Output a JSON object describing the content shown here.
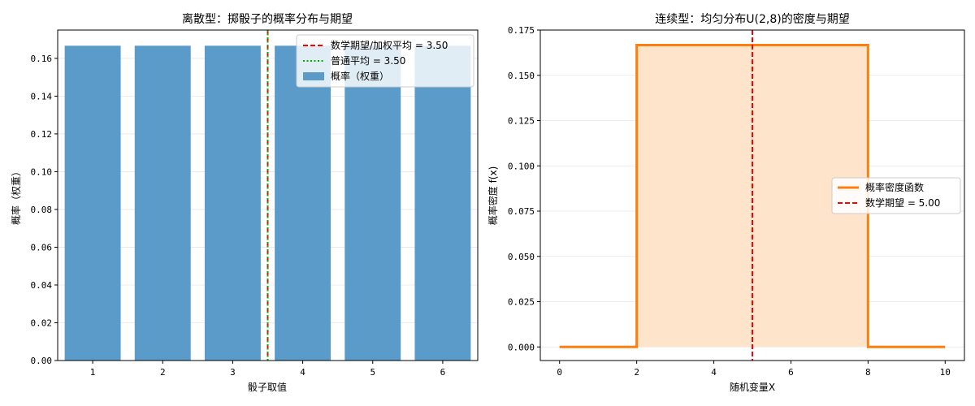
{
  "chart_data": [
    {
      "type": "bar",
      "title": "离散型：掷骰子的概率分布与期望",
      "xlabel": "骰子取值",
      "ylabel": "概率（权重）",
      "categories": [
        "1",
        "2",
        "3",
        "4",
        "5",
        "6"
      ],
      "values": [
        0.1667,
        0.1667,
        0.1667,
        0.1667,
        0.1667,
        0.1667
      ],
      "xlim": [
        0.5,
        6.5
      ],
      "ylim": [
        0,
        0.175
      ],
      "yticks": [
        0.0,
        0.02,
        0.04,
        0.06,
        0.08,
        0.1,
        0.12,
        0.14,
        0.16
      ],
      "ytick_labels": [
        "0.00",
        "0.02",
        "0.04",
        "0.06",
        "0.08",
        "0.10",
        "0.12",
        "0.14",
        "0.16"
      ],
      "grid": "y",
      "legend_position": "top-right",
      "vlines": [
        {
          "x": 3.5,
          "style": "dashed",
          "color": "#ff0000"
        },
        {
          "x": 3.5,
          "style": "dotted",
          "color": "#00aa00"
        }
      ],
      "legend": [
        {
          "label": "数学期望/加权平均 = 3.50",
          "kind": "dashed",
          "color": "#ff0000"
        },
        {
          "label": "普通平均 = 3.50",
          "kind": "dotted",
          "color": "#00aa00"
        },
        {
          "label": "概率（权重）",
          "kind": "bar",
          "color": "#5b9bc9"
        }
      ],
      "colors": {
        "bar": "#5b9bc9"
      }
    },
    {
      "type": "line",
      "title": "连续型：均匀分布U(2,8)的密度与期望",
      "xlabel": "随机变量X",
      "ylabel": "概率密度 f(x)",
      "x": [
        0,
        2,
        2,
        8,
        8,
        10
      ],
      "y": [
        0,
        0,
        0.1667,
        0.1667,
        0,
        0
      ],
      "fill_between": [
        2,
        8
      ],
      "xlim": [
        -0.5,
        10.5
      ],
      "ylim": [
        -0.0075,
        0.175
      ],
      "xticks": [
        0,
        2,
        4,
        6,
        8,
        10
      ],
      "xtick_labels": [
        "0",
        "2",
        "4",
        "6",
        "8",
        "10"
      ],
      "yticks": [
        0.0,
        0.025,
        0.05,
        0.075,
        0.1,
        0.125,
        0.15,
        0.175
      ],
      "ytick_labels": [
        "0.000",
        "0.025",
        "0.050",
        "0.075",
        "0.100",
        "0.125",
        "0.150",
        "0.175"
      ],
      "grid": "y",
      "legend_position": "center-right",
      "vlines": [
        {
          "x": 5,
          "style": "dashed",
          "color": "#ff0000"
        }
      ],
      "legend": [
        {
          "label": "概率密度函数",
          "kind": "solid",
          "color": "#ff7f0e"
        },
        {
          "label": "数学期望 = 5.00",
          "kind": "dashed",
          "color": "#ff0000"
        }
      ],
      "colors": {
        "line": "#ff7f0e",
        "fill": "#ffe4cc"
      }
    }
  ]
}
